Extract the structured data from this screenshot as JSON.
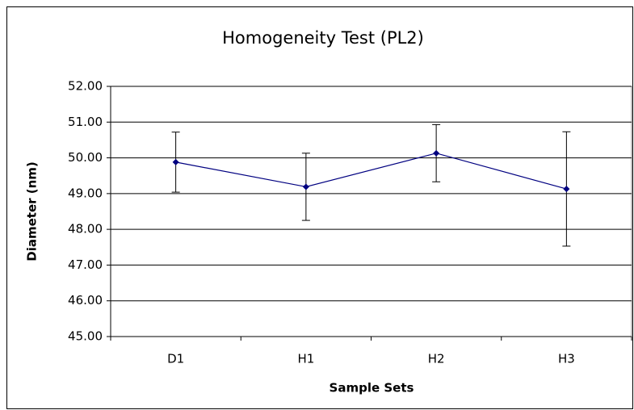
{
  "chart_data": {
    "type": "line",
    "title": "Homogeneity Test (PL2)",
    "xlabel": "Sample Sets",
    "ylabel": "Diameter (nm)",
    "categories": [
      "D1",
      "H1",
      "H2",
      "H3"
    ],
    "series": [
      {
        "name": "PL2",
        "color": "#000080",
        "values": [
          49.88,
          49.19,
          50.13,
          49.13
        ],
        "errors": [
          0.84,
          0.94,
          0.8,
          1.6
        ]
      }
    ],
    "ylim": [
      45,
      52
    ],
    "yticks": [
      {
        "value": 45,
        "label": "45.00"
      },
      {
        "value": 46,
        "label": "46.00"
      },
      {
        "value": 47,
        "label": "47.00"
      },
      {
        "value": 48,
        "label": "48.00"
      },
      {
        "value": 49,
        "label": "49.00"
      },
      {
        "value": 50,
        "label": "50.00"
      },
      {
        "value": 51,
        "label": "51.00"
      },
      {
        "value": 52,
        "label": "52.00"
      }
    ],
    "grid": true,
    "legend": false
  }
}
